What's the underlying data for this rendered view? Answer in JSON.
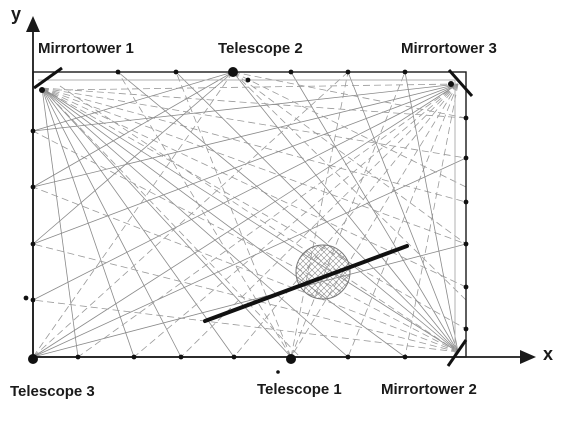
{
  "labels": {
    "mirrortower_1": "Mirrortower 1",
    "telescope_2": "Telescope 2",
    "mirrortower_3": "Mirrortower 3",
    "telescope_3": "Telescope 3",
    "telescope_1": "Telescope 1",
    "mirrortower_2": "Mirrortower 2",
    "axis_x": "x",
    "axis_y": "y"
  },
  "colors": {
    "ink": "#1a1a1a",
    "beam_solid": "#8a8a8a",
    "beam_dashed": "#9a9a9a",
    "background": "#ffffff"
  }
}
